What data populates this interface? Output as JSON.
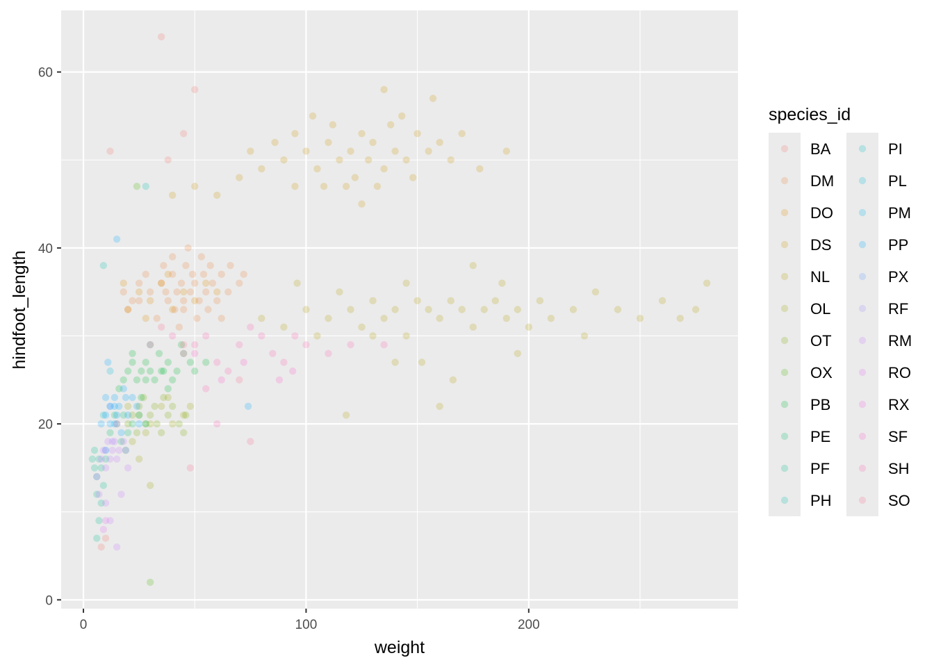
{
  "chart_data": {
    "type": "scatter",
    "title": "",
    "xlabel": "weight",
    "ylabel": "hindfoot_length",
    "xlim": [
      -10,
      294
    ],
    "ylim": [
      -1,
      67
    ],
    "x_ticks": [
      0,
      100,
      200
    ],
    "x_tick_labels": [
      "0",
      "100",
      "200"
    ],
    "y_ticks": [
      0,
      20,
      40,
      60
    ],
    "y_tick_labels": [
      "0",
      "20",
      "40",
      "60"
    ],
    "grid": true,
    "point_alpha": 0.1,
    "legend": {
      "title": "species_id",
      "placement": "right",
      "columns": 2
    },
    "series": [
      {
        "name": "BA",
        "color": "#F8766D",
        "points": [
          10,
          7,
          8,
          6,
          12,
          51,
          35,
          64,
          50,
          58,
          45,
          53,
          38,
          50
        ]
      },
      {
        "name": "DM",
        "color": "#EC8239",
        "points": [
          20,
          33,
          25,
          34,
          30,
          35,
          35,
          36,
          38,
          34,
          40,
          37,
          42,
          35,
          44,
          36,
          45,
          33,
          46,
          38,
          48,
          35,
          50,
          36,
          52,
          34,
          54,
          37,
          55,
          35,
          58,
          36,
          60,
          34,
          62,
          37,
          65,
          35,
          70,
          36,
          72,
          37,
          40,
          39,
          47,
          40,
          53,
          39,
          56,
          33,
          33,
          32,
          28,
          37,
          25,
          36,
          43,
          31,
          51,
          32,
          36,
          38,
          62,
          32,
          66,
          38,
          18,
          35,
          22,
          34,
          45,
          34,
          49,
          37,
          57,
          38,
          41,
          33,
          37,
          35
        ]
      },
      {
        "name": "DO",
        "color": "#DE8C00",
        "points": [
          20,
          33,
          25,
          35,
          30,
          34,
          35,
          36,
          40,
          33,
          45,
          35,
          50,
          34,
          55,
          36,
          28,
          32,
          38,
          37,
          60,
          35,
          18,
          36
        ]
      },
      {
        "name": "DS",
        "color": "#CD9600",
        "points": [
          60,
          46,
          70,
          48,
          80,
          49,
          90,
          50,
          95,
          47,
          100,
          51,
          105,
          49,
          110,
          52,
          115,
          50,
          120,
          51,
          122,
          48,
          125,
          53,
          128,
          50,
          130,
          52,
          135,
          49,
          138,
          54,
          140,
          51,
          145,
          50,
          150,
          53,
          155,
          51,
          160,
          52,
          165,
          50,
          170,
          53,
          178,
          49,
          190,
          51,
          112,
          54,
          118,
          47,
          132,
          47,
          143,
          55,
          86,
          52,
          75,
          51,
          103,
          55,
          125,
          45,
          148,
          48,
          135,
          58,
          50,
          47,
          40,
          46,
          157,
          57,
          95,
          53,
          108,
          47
        ]
      },
      {
        "name": "NL",
        "color": "#B79F00",
        "points": [
          80,
          32,
          90,
          31,
          100,
          33,
          110,
          32,
          115,
          35,
          120,
          33,
          125,
          31,
          130,
          34,
          135,
          32,
          140,
          33,
          145,
          30,
          150,
          34,
          155,
          33,
          160,
          32,
          165,
          34,
          170,
          33,
          175,
          31,
          180,
          33,
          185,
          34,
          190,
          32,
          195,
          33,
          200,
          31,
          205,
          34,
          210,
          32,
          220,
          33,
          230,
          35,
          240,
          33,
          250,
          32,
          260,
          34,
          275,
          33,
          268,
          32,
          280,
          36,
          152,
          27,
          166,
          25,
          160,
          22,
          118,
          21,
          140,
          27,
          175,
          38,
          195,
          28,
          188,
          36,
          130,
          30,
          145,
          36,
          105,
          30,
          96,
          36,
          225,
          30
        ]
      },
      {
        "name": "OL",
        "color": "#9DA700",
        "points": [
          20,
          22,
          25,
          21,
          30,
          20,
          35,
          22,
          40,
          20,
          45,
          21,
          28,
          19,
          38,
          23,
          22,
          18,
          48,
          22,
          30,
          13,
          25,
          16
        ]
      },
      {
        "name": "OT",
        "color": "#7CAE00",
        "points": [
          20,
          20,
          22,
          21,
          25,
          22,
          28,
          20,
          30,
          21,
          32,
          22,
          35,
          19,
          38,
          21,
          40,
          22,
          43,
          20,
          46,
          21,
          24,
          19,
          27,
          23,
          33,
          20,
          36,
          23,
          45,
          19
        ]
      },
      {
        "name": "OX",
        "color": "#49B500",
        "points": [
          24,
          47,
          30,
          2
        ]
      },
      {
        "name": "PB",
        "color": "#00BA38",
        "points": [
          18,
          25,
          20,
          26,
          22,
          27,
          24,
          25,
          26,
          26,
          28,
          27,
          30,
          26,
          32,
          25,
          34,
          28,
          36,
          26,
          38,
          27,
          40,
          25,
          42,
          26,
          45,
          28,
          48,
          27,
          50,
          26,
          55,
          27,
          30,
          29,
          26,
          23,
          22,
          28,
          38,
          24,
          44,
          29,
          16,
          24,
          35,
          26,
          28,
          25
        ]
      },
      {
        "name": "PE",
        "color": "#00BE6C",
        "points": [
          12,
          19,
          15,
          20,
          18,
          21,
          20,
          19,
          22,
          20,
          25,
          21,
          17,
          18,
          28,
          20,
          14,
          21,
          19,
          17
        ]
      },
      {
        "name": "PF",
        "color": "#00C08B",
        "points": [
          4,
          16,
          5,
          15,
          6,
          14,
          7,
          16,
          8,
          15,
          9,
          13,
          10,
          16,
          6,
          12,
          8,
          11,
          5,
          17,
          7,
          9,
          6,
          7
        ]
      },
      {
        "name": "PH",
        "color": "#00C1A9",
        "points": [
          28,
          47,
          9,
          38
        ]
      },
      {
        "name": "PI",
        "color": "#00BFC4",
        "points": [
          9,
          21
        ]
      },
      {
        "name": "PL",
        "color": "#00BBDB",
        "points": [
          12,
          26
        ]
      },
      {
        "name": "PM",
        "color": "#00B4F0",
        "points": [
          10,
          17,
          14,
          20
        ]
      },
      {
        "name": "PP",
        "color": "#00A9FF",
        "points": [
          8,
          20,
          10,
          21,
          12,
          22,
          14,
          23,
          15,
          21,
          16,
          22,
          18,
          24,
          20,
          21,
          22,
          23,
          24,
          22,
          12,
          20,
          17,
          19,
          19,
          23,
          14,
          22,
          10,
          23,
          25,
          20,
          11,
          27,
          15,
          41,
          74,
          22
        ]
      },
      {
        "name": "PX",
        "color": "#619CFF",
        "points": [
          12,
          22
        ]
      },
      {
        "name": "RF",
        "color": "#9F8CFF",
        "points": [
          10,
          17,
          13,
          18
        ]
      },
      {
        "name": "RM",
        "color": "#C77CFF",
        "points": [
          6,
          14,
          8,
          16,
          9,
          17,
          10,
          15,
          11,
          18,
          12,
          16,
          13,
          17,
          14,
          18,
          15,
          16,
          16,
          17,
          18,
          18,
          20,
          15,
          7,
          12,
          10,
          11,
          12,
          9,
          15,
          6,
          17,
          12,
          19,
          17
        ]
      },
      {
        "name": "RO",
        "color": "#E36EF6",
        "points": [
          9,
          8,
          10,
          9
        ]
      },
      {
        "name": "RX",
        "color": "#F564E3",
        "points": [
          15,
          20
        ]
      },
      {
        "name": "SF",
        "color": "#FF61C9",
        "points": [
          30,
          29,
          50,
          28,
          62,
          25,
          72,
          27,
          88,
          25,
          94,
          26
        ]
      },
      {
        "name": "SH",
        "color": "#FF64B0",
        "points": [
          40,
          30,
          45,
          28,
          50,
          29,
          55,
          30,
          60,
          27,
          65,
          26,
          70,
          29,
          75,
          31,
          80,
          30,
          85,
          28,
          90,
          27,
          95,
          30,
          100,
          29,
          110,
          28,
          120,
          29,
          135,
          29,
          60,
          20,
          55,
          24
        ]
      },
      {
        "name": "SO",
        "color": "#FF6C91",
        "points": [
          35,
          31,
          45,
          29,
          70,
          25,
          75,
          18,
          48,
          15
        ]
      }
    ]
  }
}
